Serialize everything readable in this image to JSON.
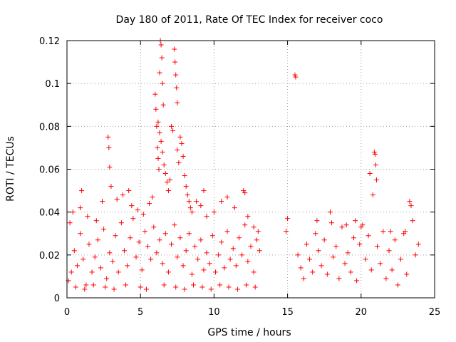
{
  "chart_data": {
    "type": "scatter",
    "title": "Day 180 of 2011, Rate Of TEC Index for receiver coco",
    "xlabel": "GPS time / hours",
    "ylabel": "ROTI / TECUs",
    "xlim": [
      0,
      25
    ],
    "ylim": [
      0,
      0.12
    ],
    "xticks": [
      0,
      5,
      10,
      15,
      20,
      25
    ],
    "xtick_labels": [
      "0",
      "5",
      "10",
      "15",
      "20",
      "25"
    ],
    "yticks": [
      0,
      0.02,
      0.04,
      0.06,
      0.08,
      0.1,
      0.12
    ],
    "ytick_labels": [
      "0",
      "0.02",
      "0.04",
      "0.06",
      "0.08",
      "0.1",
      "0.12"
    ],
    "grid": true,
    "marker": "+",
    "color": "#ff0000",
    "series": [
      {
        "name": "ROTI",
        "points": [
          [
            0.1,
            0.008
          ],
          [
            0.3,
            0.012
          ],
          [
            0.5,
            0.022
          ],
          [
            0.7,
            0.015
          ],
          [
            0.9,
            0.03
          ],
          [
            1.1,
            0.018
          ],
          [
            1.3,
            0.006
          ],
          [
            1.5,
            0.025
          ],
          [
            1.7,
            0.012
          ],
          [
            1.9,
            0.019
          ],
          [
            2.1,
            0.027
          ],
          [
            2.3,
            0.014
          ],
          [
            2.5,
            0.032
          ],
          [
            2.7,
            0.009
          ],
          [
            2.9,
            0.021
          ],
          [
            3.1,
            0.017
          ],
          [
            3.3,
            0.029
          ],
          [
            3.5,
            0.012
          ],
          [
            3.7,
            0.035
          ],
          [
            3.9,
            0.022
          ],
          [
            4.1,
            0.015
          ],
          [
            4.3,
            0.028
          ],
          [
            4.5,
            0.037
          ],
          [
            4.7,
            0.019
          ],
          [
            4.9,
            0.026
          ],
          [
            5.1,
            0.013
          ],
          [
            5.3,
            0.031
          ],
          [
            5.5,
            0.024
          ],
          [
            5.7,
            0.018
          ],
          [
            5.9,
            0.033
          ],
          [
            6.1,
            0.021
          ],
          [
            6.3,
            0.027
          ],
          [
            6.5,
            0.016
          ],
          [
            6.7,
            0.03
          ],
          [
            6.9,
            0.012
          ],
          [
            7.1,
            0.025
          ],
          [
            7.3,
            0.034
          ],
          [
            7.5,
            0.019
          ],
          [
            7.7,
            0.028
          ],
          [
            7.9,
            0.015
          ],
          [
            8.1,
            0.022
          ],
          [
            8.3,
            0.03
          ],
          [
            8.5,
            0.011
          ],
          [
            8.7,
            0.024
          ],
          [
            8.9,
            0.018
          ],
          [
            9.1,
            0.027
          ],
          [
            9.3,
            0.013
          ],
          [
            9.5,
            0.021
          ],
          [
            9.7,
            0.016
          ],
          [
            9.9,
            0.029
          ],
          [
            10.1,
            0.012
          ],
          [
            10.3,
            0.02
          ],
          [
            10.5,
            0.026
          ],
          [
            10.7,
            0.014
          ],
          [
            10.9,
            0.031
          ],
          [
            11.1,
            0.018
          ],
          [
            11.3,
            0.023
          ],
          [
            11.5,
            0.015
          ],
          [
            11.7,
            0.028
          ],
          [
            11.9,
            0.02
          ],
          [
            12.1,
            0.034
          ],
          [
            12.3,
            0.017
          ],
          [
            12.5,
            0.024
          ],
          [
            12.7,
            0.012
          ],
          [
            12.9,
            0.027
          ],
          [
            13.1,
            0.022
          ],
          [
            0.2,
            0.035
          ],
          [
            0.4,
            0.04
          ],
          [
            0.9,
            0.042
          ],
          [
            1.0,
            0.05
          ],
          [
            1.4,
            0.038
          ],
          [
            2.0,
            0.036
          ],
          [
            2.4,
            0.045
          ],
          [
            2.8,
            0.075
          ],
          [
            2.85,
            0.07
          ],
          [
            2.9,
            0.061
          ],
          [
            3.0,
            0.052
          ],
          [
            3.4,
            0.046
          ],
          [
            3.8,
            0.048
          ],
          [
            4.2,
            0.05
          ],
          [
            4.4,
            0.043
          ],
          [
            4.8,
            0.041
          ],
          [
            5.2,
            0.039
          ],
          [
            5.6,
            0.044
          ],
          [
            5.8,
            0.047
          ],
          [
            6.0,
            0.095
          ],
          [
            6.05,
            0.088
          ],
          [
            6.1,
            0.08
          ],
          [
            6.15,
            0.07
          ],
          [
            6.2,
            0.065
          ],
          [
            6.25,
            0.06
          ],
          [
            6.3,
            0.105
          ],
          [
            6.35,
            0.12
          ],
          [
            6.4,
            0.118
          ],
          [
            6.45,
            0.112
          ],
          [
            6.5,
            0.1
          ],
          [
            6.55,
            0.09
          ],
          [
            6.2,
            0.082
          ],
          [
            6.3,
            0.077
          ],
          [
            6.4,
            0.073
          ],
          [
            6.5,
            0.068
          ],
          [
            6.6,
            0.062
          ],
          [
            6.7,
            0.058
          ],
          [
            6.8,
            0.054
          ],
          [
            6.9,
            0.05
          ],
          [
            7.0,
            0.055
          ],
          [
            7.1,
            0.08
          ],
          [
            7.2,
            0.078
          ],
          [
            7.3,
            0.116
          ],
          [
            7.35,
            0.11
          ],
          [
            7.4,
            0.104
          ],
          [
            7.45,
            0.098
          ],
          [
            7.5,
            0.091
          ],
          [
            7.5,
            0.069
          ],
          [
            7.6,
            0.063
          ],
          [
            7.7,
            0.075
          ],
          [
            7.8,
            0.072
          ],
          [
            7.9,
            0.066
          ],
          [
            8.0,
            0.057
          ],
          [
            8.1,
            0.052
          ],
          [
            8.2,
            0.048
          ],
          [
            8.3,
            0.045
          ],
          [
            8.4,
            0.042
          ],
          [
            8.5,
            0.04
          ],
          [
            8.8,
            0.045
          ],
          [
            9.1,
            0.043
          ],
          [
            9.3,
            0.05
          ],
          [
            9.5,
            0.038
          ],
          [
            10.0,
            0.04
          ],
          [
            10.5,
            0.045
          ],
          [
            10.9,
            0.047
          ],
          [
            11.4,
            0.042
          ],
          [
            12.0,
            0.05
          ],
          [
            12.1,
            0.049
          ],
          [
            12.3,
            0.038
          ],
          [
            12.7,
            0.033
          ],
          [
            13.0,
            0.031
          ],
          [
            0.6,
            0.005
          ],
          [
            1.2,
            0.004
          ],
          [
            1.8,
            0.006
          ],
          [
            2.6,
            0.005
          ],
          [
            3.2,
            0.004
          ],
          [
            4.0,
            0.006
          ],
          [
            5.0,
            0.005
          ],
          [
            5.4,
            0.004
          ],
          [
            6.6,
            0.006
          ],
          [
            7.4,
            0.005
          ],
          [
            8.0,
            0.004
          ],
          [
            8.6,
            0.006
          ],
          [
            9.2,
            0.005
          ],
          [
            9.8,
            0.004
          ],
          [
            10.4,
            0.006
          ],
          [
            11.0,
            0.005
          ],
          [
            11.6,
            0.004
          ],
          [
            12.2,
            0.006
          ],
          [
            12.8,
            0.005
          ],
          [
            14.9,
            0.031
          ],
          [
            15.0,
            0.037
          ],
          [
            15.5,
            0.104
          ],
          [
            15.55,
            0.103
          ],
          [
            15.7,
            0.02
          ],
          [
            15.9,
            0.014
          ],
          [
            16.1,
            0.009
          ],
          [
            16.3,
            0.025
          ],
          [
            16.5,
            0.018
          ],
          [
            16.7,
            0.012
          ],
          [
            16.9,
            0.03
          ],
          [
            17.1,
            0.022
          ],
          [
            17.3,
            0.015
          ],
          [
            17.5,
            0.027
          ],
          [
            17.7,
            0.011
          ],
          [
            17.9,
            0.04
          ],
          [
            18.1,
            0.019
          ],
          [
            18.3,
            0.024
          ],
          [
            18.5,
            0.009
          ],
          [
            18.7,
            0.033
          ],
          [
            18.9,
            0.016
          ],
          [
            19.1,
            0.021
          ],
          [
            19.3,
            0.012
          ],
          [
            19.5,
            0.028
          ],
          [
            19.7,
            0.008
          ],
          [
            19.9,
            0.025
          ],
          [
            20.1,
            0.034
          ],
          [
            20.3,
            0.018
          ],
          [
            20.5,
            0.029
          ],
          [
            20.7,
            0.013
          ],
          [
            20.9,
            0.068
          ],
          [
            20.95,
            0.067
          ],
          [
            21.0,
            0.062
          ],
          [
            21.05,
            0.055
          ],
          [
            20.8,
            0.048
          ],
          [
            20.6,
            0.058
          ],
          [
            21.1,
            0.024
          ],
          [
            21.3,
            0.016
          ],
          [
            21.5,
            0.031
          ],
          [
            21.7,
            0.009
          ],
          [
            21.9,
            0.022
          ],
          [
            22.1,
            0.013
          ],
          [
            22.3,
            0.027
          ],
          [
            22.5,
            0.006
          ],
          [
            22.7,
            0.018
          ],
          [
            22.9,
            0.03
          ],
          [
            23.1,
            0.011
          ],
          [
            23.3,
            0.045
          ],
          [
            23.4,
            0.043
          ],
          [
            23.5,
            0.036
          ],
          [
            23.7,
            0.02
          ],
          [
            23.9,
            0.025
          ],
          [
            17.0,
            0.036
          ],
          [
            18.0,
            0.035
          ],
          [
            19.0,
            0.034
          ],
          [
            19.6,
            0.036
          ],
          [
            20.0,
            0.033
          ],
          [
            22.0,
            0.031
          ],
          [
            23.0,
            0.031
          ]
        ]
      }
    ]
  }
}
